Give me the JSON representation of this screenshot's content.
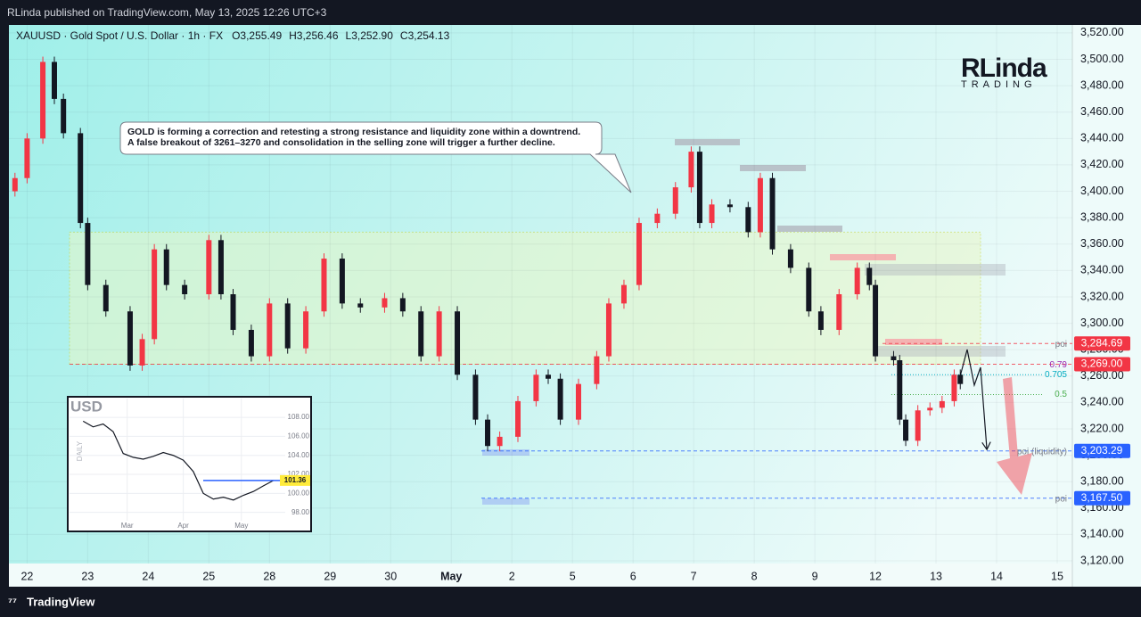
{
  "header": {
    "published": "RLinda published on TradingView.com, May 13, 2025 12:26 UTC+3",
    "symbol": "XAUUSD · Gold Spot / U.S. Dollar · 1h · FX",
    "ohlc": [
      "O3,255.49",
      "H3,256.46",
      "L3,252.90",
      "C3,254.13"
    ]
  },
  "logo": {
    "name": "RLinda",
    "sub": "TRADING"
  },
  "footer": "TradingView",
  "chart_data": [
    {
      "type": "candlestick",
      "annotation": [
        "GOLD is forming a correction and retesting a strong resistance and liquidity zone within a downtrend.",
        "A false breakout of 3261–3270 and consolidation in the selling zone will trigger a further decline."
      ],
      "x": [
        -0.2,
        0.0,
        0.26,
        0.45,
        0.6,
        0.88,
        1.0,
        1.3,
        1.7,
        1.9,
        2.1,
        2.3,
        2.6,
        3.0,
        3.2,
        3.4,
        3.7,
        4.0,
        4.3,
        4.6,
        4.9,
        5.2,
        5.5,
        5.9,
        6.2,
        6.5,
        6.8,
        7.1,
        7.4,
        7.6,
        7.8,
        8.1,
        8.4,
        8.6,
        8.8,
        9.1,
        9.4,
        9.6,
        9.85,
        10.1,
        10.4,
        10.7,
        10.96,
        11.1,
        11.3,
        11.6,
        11.9,
        12.1,
        12.3,
        12.6,
        12.9,
        13.1,
        13.4,
        13.7,
        13.9,
        14.0,
        14.3,
        14.4,
        14.5,
        14.7,
        14.9,
        15.1,
        15.3,
        15.4
      ],
      "open": [
        3400,
        3410,
        3440,
        3498,
        3470,
        3444,
        3376,
        3329,
        3309,
        3268,
        3288,
        3356,
        3329,
        3322,
        3363,
        3322,
        3295,
        3275,
        3315,
        3281,
        3309,
        3349,
        3315,
        3312,
        3319,
        3309,
        3275,
        3309,
        3261,
        3227,
        3207,
        3214,
        3241,
        3261,
        3258,
        3227,
        3254,
        3275,
        3315,
        3329,
        3376,
        3383,
        3403,
        3430,
        3376,
        3390,
        3388,
        3369,
        3410,
        3356,
        3342,
        3309,
        3295,
        3322,
        3342,
        3329,
        3275,
        3272,
        3227,
        3211,
        3234,
        3236,
        3241,
        3261
      ],
      "high": [
        3414,
        3444,
        3502,
        3502,
        3474,
        3448,
        3380,
        3333,
        3313,
        3292,
        3360,
        3360,
        3333,
        3367,
        3367,
        3326,
        3299,
        3319,
        3319,
        3313,
        3353,
        3353,
        3319,
        3323,
        3323,
        3313,
        3313,
        3313,
        3265,
        3231,
        3218,
        3245,
        3265,
        3265,
        3262,
        3258,
        3279,
        3319,
        3333,
        3380,
        3387,
        3407,
        3434,
        3434,
        3394,
        3394,
        3392,
        3414,
        3414,
        3360,
        3346,
        3313,
        3326,
        3346,
        3346,
        3333,
        3279,
        3276,
        3231,
        3238,
        3240,
        3245,
        3265,
        3265
      ],
      "low": [
        3396,
        3406,
        3436,
        3466,
        3440,
        3372,
        3325,
        3305,
        3264,
        3264,
        3284,
        3325,
        3318,
        3318,
        3318,
        3291,
        3271,
        3271,
        3277,
        3277,
        3305,
        3311,
        3308,
        3308,
        3305,
        3271,
        3271,
        3257,
        3223,
        3203,
        3203,
        3210,
        3237,
        3254,
        3223,
        3223,
        3250,
        3271,
        3311,
        3325,
        3372,
        3379,
        3399,
        3372,
        3372,
        3384,
        3365,
        3365,
        3352,
        3338,
        3305,
        3291,
        3291,
        3318,
        3325,
        3271,
        3268,
        3223,
        3207,
        3207,
        3230,
        3232,
        3237,
        3250
      ],
      "close": [
        3410,
        3440,
        3498,
        3470,
        3444,
        3376,
        3329,
        3309,
        3268,
        3288,
        3356,
        3329,
        3322,
        3363,
        3322,
        3295,
        3275,
        3315,
        3281,
        3309,
        3349,
        3315,
        3312,
        3319,
        3309,
        3275,
        3309,
        3261,
        3227,
        3207,
        3214,
        3241,
        3261,
        3258,
        3227,
        3254,
        3275,
        3315,
        3329,
        3376,
        3383,
        3403,
        3430,
        3376,
        3390,
        3388,
        3369,
        3410,
        3356,
        3342,
        3309,
        3295,
        3322,
        3342,
        3329,
        3275,
        3272,
        3227,
        3211,
        3234,
        3236,
        3241,
        3261,
        3254
      ],
      "up_color": "#f23645",
      "down_color": "#131722",
      "xlim": [
        -0.3,
        17.25
      ],
      "xticks": [
        {
          "value": 0,
          "label": "22"
        },
        {
          "value": 1,
          "label": "23"
        },
        {
          "value": 2,
          "label": "24"
        },
        {
          "value": 3,
          "label": "25"
        },
        {
          "value": 4,
          "label": "28"
        },
        {
          "value": 5,
          "label": "29"
        },
        {
          "value": 6,
          "label": "30"
        },
        {
          "value": 7,
          "label": "May"
        },
        {
          "value": 8,
          "label": "2"
        },
        {
          "value": 9,
          "label": "5"
        },
        {
          "value": 10,
          "label": "6"
        },
        {
          "value": 11,
          "label": "7"
        },
        {
          "value": 12,
          "label": "8"
        },
        {
          "value": 13,
          "label": "9"
        },
        {
          "value": 14,
          "label": "12"
        },
        {
          "value": 15,
          "label": "13"
        },
        {
          "value": 16,
          "label": "14"
        },
        {
          "value": 17,
          "label": "15"
        }
      ],
      "ylim": [
        3118,
        3526
      ],
      "yticks": [
        {
          "value": 3120,
          "label": "3,120.00"
        },
        {
          "value": 3140,
          "label": "3,140.00"
        },
        {
          "value": 3160,
          "label": "3,160.00"
        },
        {
          "value": 3180,
          "label": "3,180.00"
        },
        {
          "value": 3200,
          "label": "3,200.00"
        },
        {
          "value": 3220,
          "label": "3,220.00"
        },
        {
          "value": 3240,
          "label": "3,240.00"
        },
        {
          "value": 3260,
          "label": "3,260.00"
        },
        {
          "value": 3280,
          "label": "3,280.00"
        },
        {
          "value": 3300,
          "label": "3,300.00"
        },
        {
          "value": 3320,
          "label": "3,320.00"
        },
        {
          "value": 3340,
          "label": "3,340.00"
        },
        {
          "value": 3360,
          "label": "3,360.00"
        },
        {
          "value": 3380,
          "label": "3,380.00"
        },
        {
          "value": 3400,
          "label": "3,400.00"
        },
        {
          "value": 3420,
          "label": "3,420.00"
        },
        {
          "value": 3440,
          "label": "3,440.00"
        },
        {
          "value": 3460,
          "label": "3,460.00"
        },
        {
          "value": 3480,
          "label": "3,480.00"
        },
        {
          "value": 3500,
          "label": "3,500.00"
        },
        {
          "value": 3520,
          "label": "3,520.00"
        }
      ],
      "grid": true,
      "zone": [
        3269,
        3369
      ],
      "levels": [
        {
          "value": 3284.69,
          "label": "3,284.69",
          "color": "#f23645",
          "note": "poi",
          "note_color": "#787b86"
        },
        {
          "value": 3269,
          "label": "3,269.00",
          "color": "#f23645",
          "note": "0.79",
          "note_color": "#9c27b0"
        },
        {
          "value": 3203.29,
          "label": "3,203.29",
          "color": "#2962ff",
          "note": "poi (liquidity)",
          "note_color": "#787b86"
        },
        {
          "value": 3167.5,
          "label": "3,167.50",
          "color": "#2962ff",
          "note": "poi",
          "note_color": "#787b86"
        }
      ],
      "fib": [
        {
          "price": 3261,
          "text": "0.705",
          "color": "#00acc1"
        },
        {
          "price": 3246,
          "text": "0.5",
          "color": "#4caf50"
        }
      ]
    },
    {
      "type": "line",
      "title": "USD",
      "ylabel": "DAILY",
      "color": "#131722",
      "x": [
        0,
        1,
        2,
        3,
        4,
        5,
        6,
        7,
        8,
        9,
        10,
        11,
        12,
        13,
        14,
        15,
        16,
        17,
        18,
        19
      ],
      "values": [
        107.6,
        107.0,
        107.3,
        106.5,
        104.2,
        103.8,
        103.6,
        103.9,
        104.3,
        104.0,
        103.5,
        102.3,
        100.0,
        99.4,
        99.6,
        99.3,
        99.8,
        100.2,
        100.8,
        101.36
      ],
      "xlim": [
        -1,
        20
      ],
      "xticks": [
        {
          "value": 4.4,
          "label": "Mar"
        },
        {
          "value": 10,
          "label": "Apr"
        },
        {
          "value": 15.8,
          "label": "May"
        }
      ],
      "ylim": [
        96,
        109.7
      ],
      "yticks": [
        {
          "value": 98,
          "label": "98.00"
        },
        {
          "value": 100,
          "label": "100.00"
        },
        {
          "value": 102,
          "label": "102.00"
        },
        {
          "value": 104,
          "label": "104.00"
        },
        {
          "value": 106,
          "label": "106.00"
        },
        {
          "value": 108,
          "label": "108.00"
        }
      ],
      "grid": true
    }
  ]
}
